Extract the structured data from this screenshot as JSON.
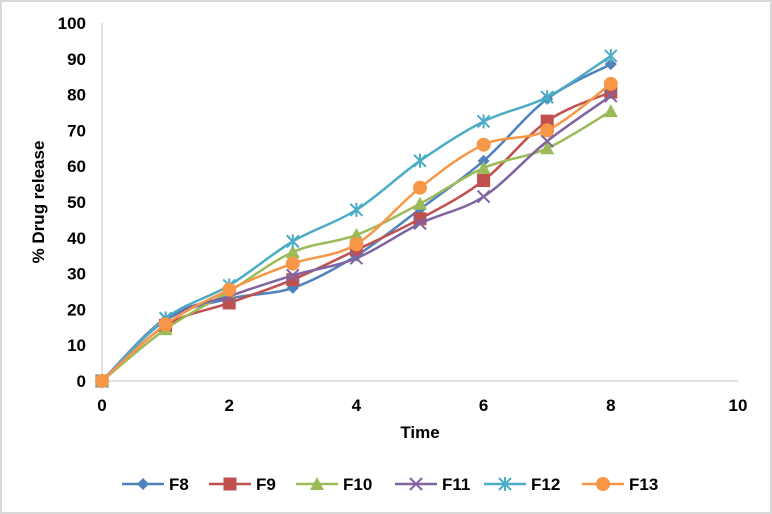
{
  "chart_data": {
    "type": "line",
    "title": "",
    "xlabel": "Time",
    "ylabel": "% Drug release",
    "xlim": [
      0,
      10
    ],
    "ylim": [
      0,
      100
    ],
    "xticks": [
      "0",
      "2",
      "4",
      "6",
      "8",
      "10"
    ],
    "xtick_values": [
      0,
      2,
      4,
      6,
      8,
      10
    ],
    "yticks": [
      "0",
      "10",
      "20",
      "30",
      "40",
      "50",
      "60",
      "70",
      "80",
      "90",
      "100"
    ],
    "ytick_values": [
      0,
      10,
      20,
      30,
      40,
      50,
      60,
      70,
      80,
      90,
      100
    ],
    "grid": "horizontal-baseline-only",
    "smooth": true,
    "legend_position": "bottom",
    "x": [
      0,
      1,
      2,
      3,
      4,
      5,
      6,
      7,
      8
    ],
    "series": [
      {
        "name": "F8",
        "color": "#4f81bd",
        "marker": "diamond",
        "values": [
          0,
          17.0,
          23.0,
          26.0,
          35.0,
          48.0,
          61.5,
          78.8,
          88.5
        ]
      },
      {
        "name": "F9",
        "color": "#c0504d",
        "marker": "square",
        "values": [
          0,
          15.5,
          21.8,
          28.3,
          36.6,
          45.3,
          56.0,
          72.6,
          80.7
        ]
      },
      {
        "name": "F10",
        "color": "#9bbb59",
        "marker": "triangle",
        "values": [
          0,
          14.5,
          25.0,
          36.0,
          40.8,
          49.5,
          59.5,
          65.0,
          75.4
        ]
      },
      {
        "name": "F11",
        "color": "#8064a2",
        "marker": "x",
        "values": [
          0,
          17.5,
          23.7,
          29.5,
          34.3,
          44.0,
          51.5,
          67.0,
          79.6
        ]
      },
      {
        "name": "F12",
        "color": "#4bacc6",
        "marker": "star",
        "values": [
          0,
          17.5,
          26.7,
          39.0,
          47.8,
          61.5,
          72.5,
          79.3,
          90.8
        ]
      },
      {
        "name": "F13",
        "color": "#f79646",
        "marker": "circle",
        "values": [
          0,
          15.8,
          25.5,
          32.8,
          38.2,
          54.0,
          66.0,
          70.0,
          83.0
        ]
      }
    ],
    "axis_color": "#d9d9d9"
  }
}
